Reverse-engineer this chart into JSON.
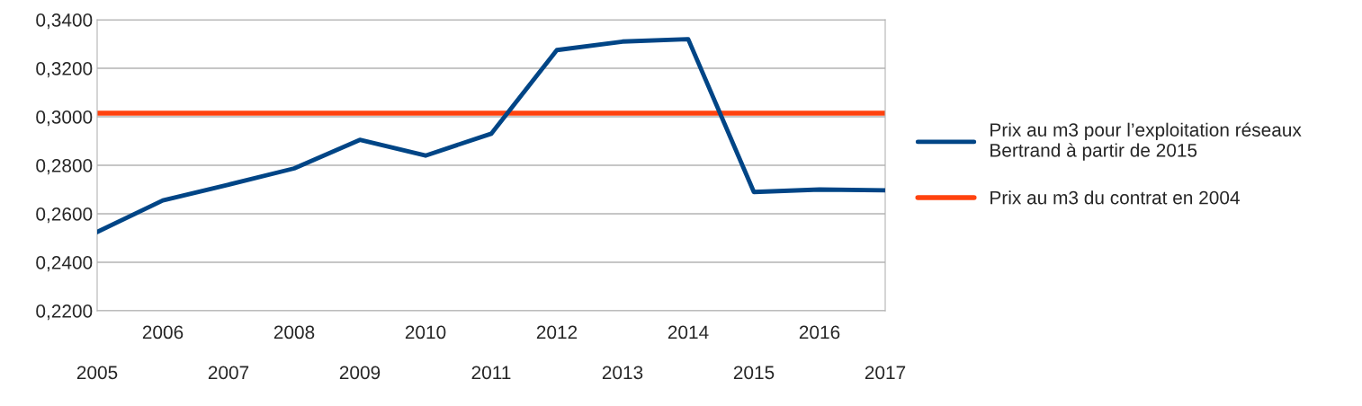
{
  "chart_data": {
    "type": "line",
    "categories": [
      "2005",
      "2006",
      "2007",
      "2008",
      "2009",
      "2010",
      "2011",
      "2012",
      "2013",
      "2014",
      "2015",
      "2016",
      "2017"
    ],
    "series": [
      {
        "name": "Prix au m3 pour l’exploitation réseaux Bertrand à partir de 2015",
        "color": "#004586",
        "values": [
          0.2525,
          0.2655,
          0.272,
          0.2787,
          0.2905,
          0.284,
          0.293,
          0.3275,
          0.331,
          0.332,
          0.269,
          0.27,
          0.2697
        ]
      }
    ],
    "ref_lines": [
      {
        "axis": "y",
        "value": 0.3015,
        "label": "Prix au m3 du contrat en 2004",
        "color": "#ff420e"
      }
    ],
    "ylim": [
      0.22,
      0.34
    ],
    "yticks": [
      {
        "value": 0.22,
        "label": "0,2200"
      },
      {
        "value": 0.24,
        "label": "0,2400"
      },
      {
        "value": 0.26,
        "label": "0,2600"
      },
      {
        "value": 0.28,
        "label": "0,2800"
      },
      {
        "value": 0.3,
        "label": "0,3000"
      },
      {
        "value": 0.32,
        "label": "0,3200"
      },
      {
        "value": 0.34,
        "label": "0,3400"
      }
    ],
    "grid": "y",
    "legend": "right",
    "marker": "none",
    "line_style": "solid"
  }
}
